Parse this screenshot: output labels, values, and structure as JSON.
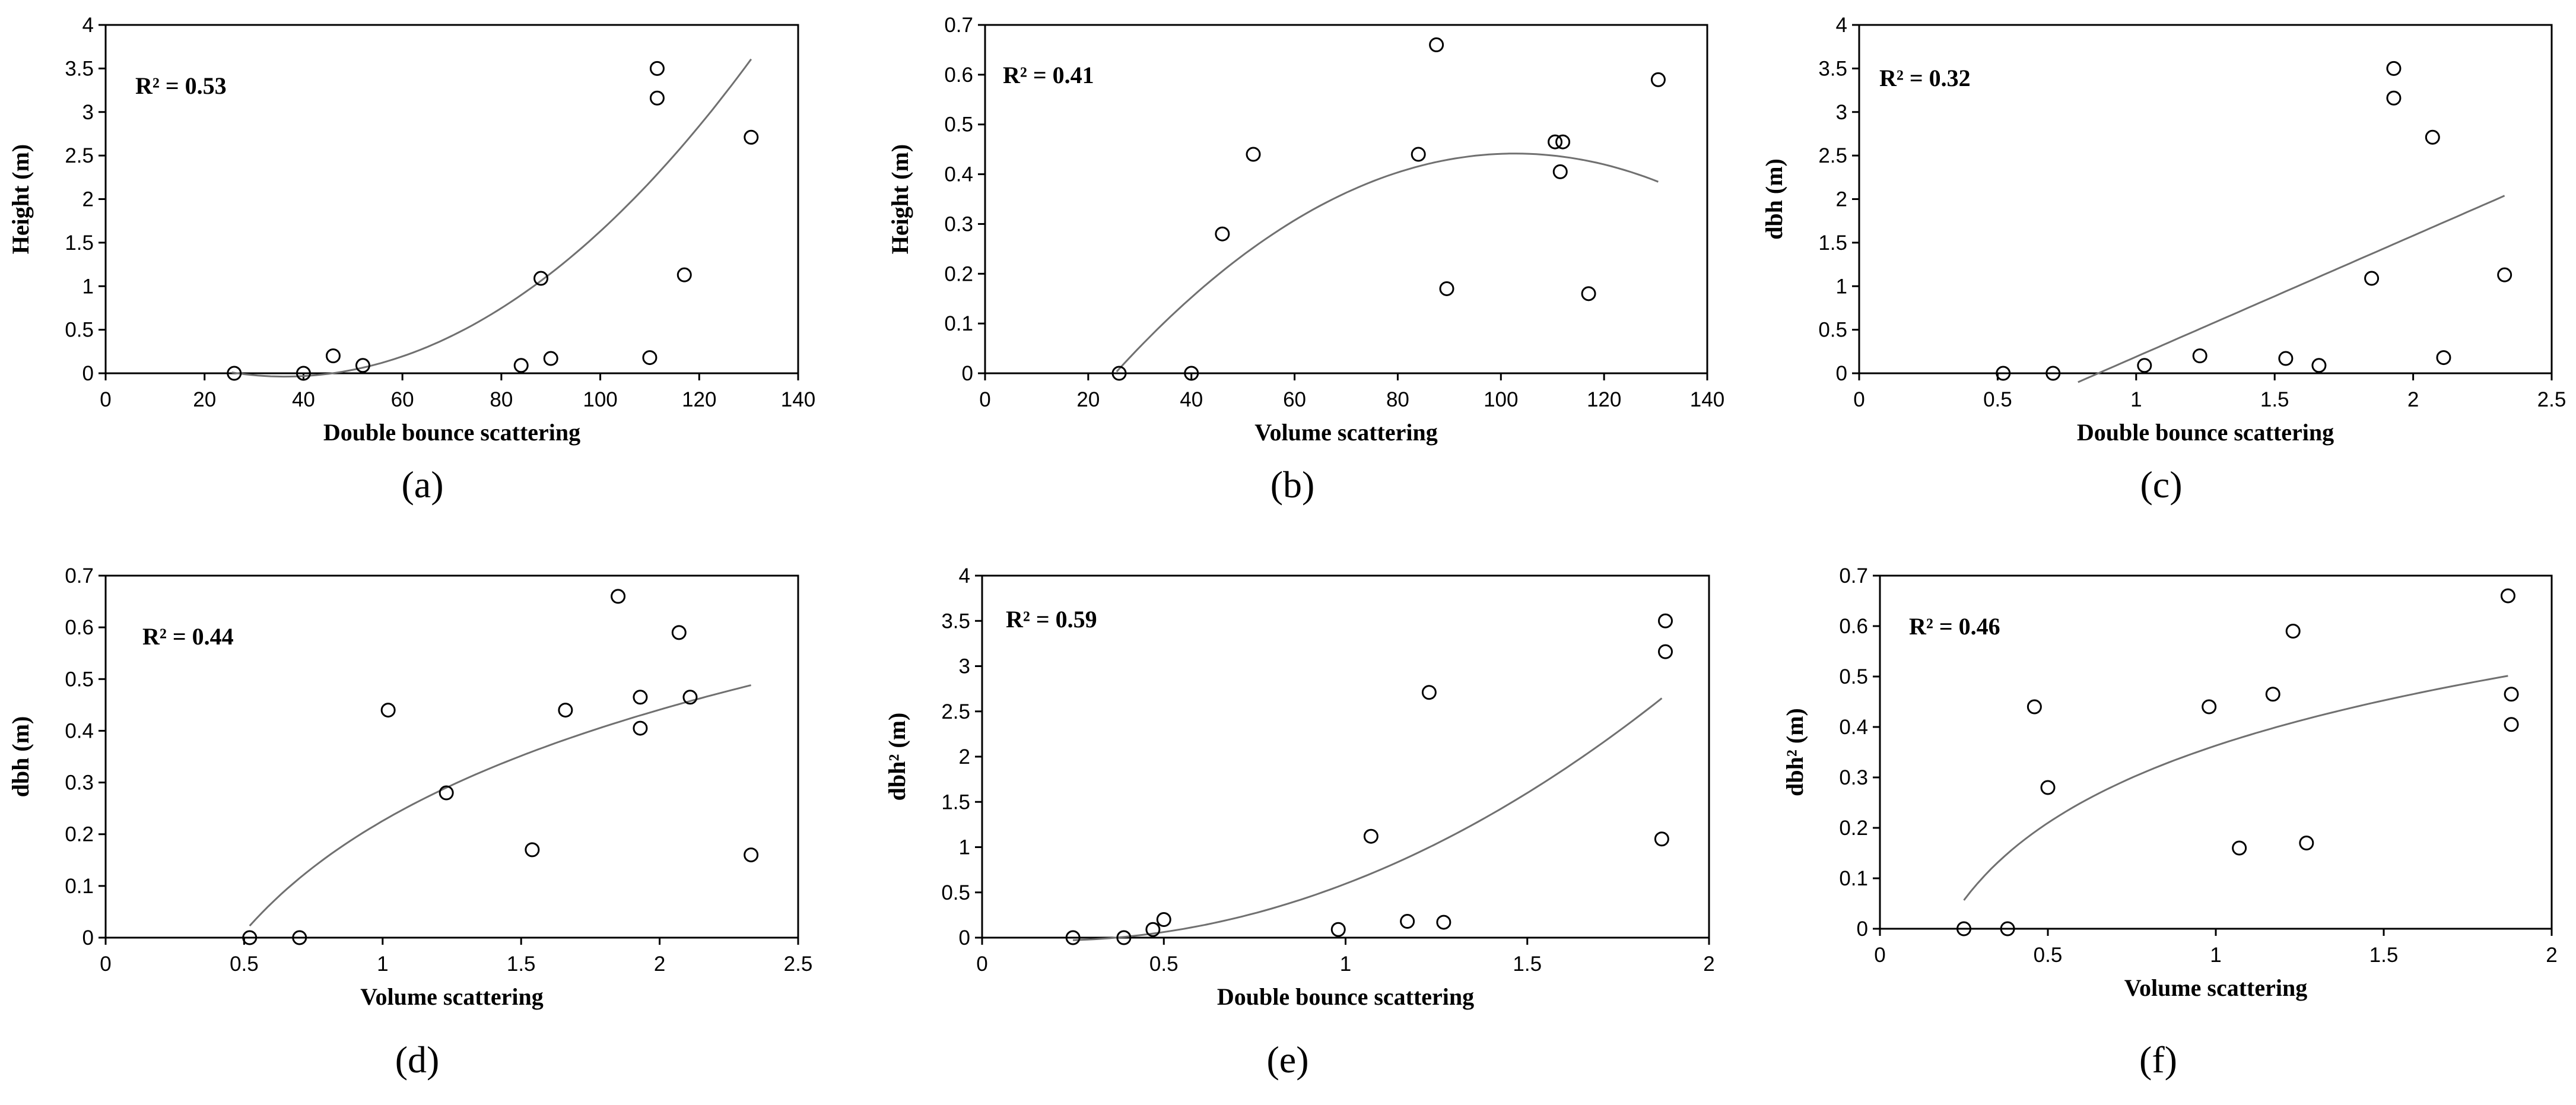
{
  "chart_data": [
    {
      "type": "scatter",
      "panel": "(a)",
      "xlabel": "Double bounce scattering",
      "ylabel": "Height (m)",
      "xlim": [
        0,
        140
      ],
      "ylim": [
        0,
        4
      ],
      "xticks": [
        "0",
        "20",
        "40",
        "60",
        "80",
        "100",
        "120",
        "140"
      ],
      "yticks": [
        "0",
        "0.5",
        "1",
        "1.5",
        "2",
        "2.5",
        "3",
        "3.5",
        "4"
      ],
      "annotation": "R² = 0.53",
      "points": [
        [
          26,
          0
        ],
        [
          40,
          0
        ],
        [
          46,
          0.2
        ],
        [
          52,
          0.09
        ],
        [
          84,
          0.09
        ],
        [
          88,
          1.09
        ],
        [
          90,
          0.17
        ],
        [
          110,
          0.18
        ],
        [
          111.5,
          3.5
        ],
        [
          111.5,
          3.16
        ],
        [
          117,
          1.13
        ],
        [
          130.5,
          2.71
        ]
      ],
      "fit": {
        "form": "quadratic",
        "coef": [
          0.00041,
          -0.0297,
          0.5
        ],
        "x_range": [
          25.5,
          130.5
        ]
      }
    },
    {
      "type": "scatter",
      "panel": "(b)",
      "xlabel": "Volume scattering",
      "ylabel": "Height (m)",
      "xlim": [
        0,
        140
      ],
      "ylim": [
        0,
        0.7
      ],
      "xticks": [
        "0",
        "20",
        "40",
        "60",
        "80",
        "100",
        "120",
        "140"
      ],
      "yticks": [
        "0",
        "0.1",
        "0.2",
        "0.3",
        "0.4",
        "0.5",
        "0.6",
        "0.7"
      ],
      "annotation": "R² = 0.41",
      "points": [
        [
          26,
          0
        ],
        [
          40,
          0
        ],
        [
          46,
          0.28
        ],
        [
          52,
          0.44
        ],
        [
          84,
          0.44
        ],
        [
          87.5,
          0.66
        ],
        [
          89.5,
          0.17
        ],
        [
          110.5,
          0.465
        ],
        [
          112,
          0.465
        ],
        [
          111.5,
          0.405
        ],
        [
          117,
          0.16
        ],
        [
          130.5,
          0.59
        ]
      ],
      "fit": {
        "form": "quadratic",
        "coef": [
          -7.35e-05,
          0.0151,
          -0.334
        ],
        "x_range": [
          25.5,
          130.5
        ]
      }
    },
    {
      "type": "scatter",
      "panel": "(c)",
      "xlabel": "Double bounce scattering",
      "ylabel": "dbh (m)",
      "xlim": [
        0,
        2.5
      ],
      "ylim": [
        0,
        4
      ],
      "xticks": [
        "0",
        "0.5",
        "1",
        "1.5",
        "2",
        "2.5"
      ],
      "yticks": [
        "0",
        "0.5",
        "1",
        "1.5",
        "2",
        "2.5",
        "3",
        "3.5",
        "4"
      ],
      "annotation": "R² = 0.32",
      "points": [
        [
          0.52,
          0
        ],
        [
          0.7,
          0
        ],
        [
          1.03,
          0.09
        ],
        [
          1.23,
          0.2
        ],
        [
          1.54,
          0.17
        ],
        [
          1.66,
          0.09
        ],
        [
          1.85,
          1.09
        ],
        [
          1.93,
          3.5
        ],
        [
          1.93,
          3.16
        ],
        [
          2.07,
          2.71
        ],
        [
          2.11,
          0.18
        ],
        [
          2.33,
          1.13
        ]
      ],
      "fit": {
        "form": "linear",
        "coef": [
          -1.2,
          1.39
        ],
        "x_range": [
          0.79,
          2.33
        ]
      }
    },
    {
      "type": "scatter",
      "panel": "(d)",
      "xlabel": "Volume scattering",
      "ylabel": "dbh (m)",
      "xlim": [
        0,
        2.5
      ],
      "ylim": [
        0,
        0.7
      ],
      "xticks": [
        "0",
        "0.5",
        "1",
        "1.5",
        "2",
        "2.5"
      ],
      "yticks": [
        "0",
        "0.1",
        "0.2",
        "0.3",
        "0.4",
        "0.5",
        "0.6",
        "0.7"
      ],
      "annotation": "R² = 0.44",
      "points": [
        [
          0.52,
          0
        ],
        [
          0.7,
          0
        ],
        [
          1.02,
          0.44
        ],
        [
          1.23,
          0.28
        ],
        [
          1.54,
          0.17
        ],
        [
          1.66,
          0.44
        ],
        [
          1.85,
          0.66
        ],
        [
          1.93,
          0.465
        ],
        [
          1.93,
          0.405
        ],
        [
          2.07,
          0.59
        ],
        [
          2.11,
          0.465
        ],
        [
          2.33,
          0.16
        ]
      ],
      "fit": {
        "form": "log",
        "coef": [
          0.3103,
          0.2257
        ],
        "x_range": [
          0.52,
          2.33
        ]
      }
    },
    {
      "type": "scatter",
      "panel": "(e)",
      "xlabel": "Double bounce scattering",
      "ylabel": "dbh² (m)",
      "xlim": [
        0,
        2
      ],
      "ylim": [
        0,
        4
      ],
      "xticks": [
        "0",
        "0.5",
        "1",
        "1.5",
        "2"
      ],
      "yticks": [
        "0",
        "0.5",
        "1",
        "1.5",
        "2",
        "2.5",
        "3",
        "3.5",
        "4"
      ],
      "annotation": "R² = 0.59",
      "points": [
        [
          0.25,
          0
        ],
        [
          0.39,
          0
        ],
        [
          0.47,
          0.09
        ],
        [
          0.5,
          0.2
        ],
        [
          0.98,
          0.09
        ],
        [
          1.07,
          1.12
        ],
        [
          1.17,
          0.18
        ],
        [
          1.23,
          2.71
        ],
        [
          1.27,
          0.17
        ],
        [
          1.87,
          1.09
        ],
        [
          1.88,
          3.5
        ],
        [
          1.88,
          3.16
        ]
      ],
      "fit": {
        "form": "quadratic",
        "coef": [
          0.942,
          -0.347,
          0.0
        ],
        "x_range": [
          0.25,
          1.87
        ]
      }
    },
    {
      "type": "scatter",
      "panel": "(f)",
      "xlabel": "Volume scattering",
      "ylabel": "dbh² (m)",
      "xlim": [
        0,
        2
      ],
      "ylim": [
        0,
        0.7
      ],
      "xticks": [
        "0",
        "0.5",
        "1",
        "1.5",
        "2"
      ],
      "yticks": [
        "0",
        "0.1",
        "0.2",
        "0.3",
        "0.4",
        "0.5",
        "0.6",
        "0.7"
      ],
      "annotation": "R² = 0.46",
      "points": [
        [
          0.25,
          0
        ],
        [
          0.38,
          0
        ],
        [
          0.46,
          0.44
        ],
        [
          0.5,
          0.28
        ],
        [
          0.98,
          0.44
        ],
        [
          1.07,
          0.16
        ],
        [
          1.17,
          0.465
        ],
        [
          1.23,
          0.59
        ],
        [
          1.27,
          0.17
        ],
        [
          1.87,
          0.66
        ],
        [
          1.88,
          0.465
        ],
        [
          1.88,
          0.405
        ]
      ],
      "fit": {
        "form": "log",
        "coef": [
          0.221,
          0.363
        ],
        "x_range": [
          0.25,
          1.87
        ]
      }
    }
  ]
}
